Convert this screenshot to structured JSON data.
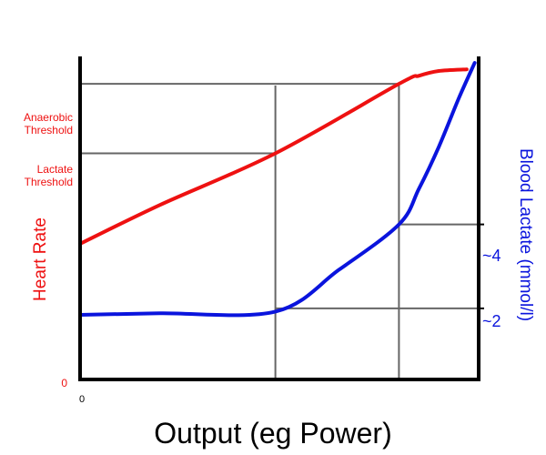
{
  "chart_data": {
    "type": "line",
    "title": "",
    "xlabel": "Output (eg Power)",
    "ylabel_left": "Heart Rate",
    "ylabel_right": "Blood Lactate (mmol/l)",
    "x_origin_label": "0",
    "y_origin_label": "0",
    "left_axis_annotations": [
      {
        "lines": [
          "Anaerobic",
          "Threshold"
        ],
        "level": 0.915
      },
      {
        "lines": [
          "Lactate",
          "Threshold"
        ],
        "level": 0.7
      }
    ],
    "right_axis_ticks": [
      {
        "label": "~4",
        "level": 0.48
      },
      {
        "label": "~2",
        "level": 0.22
      }
    ],
    "vertical_markers": [
      0.49,
      0.8
    ],
    "colors": {
      "heart_rate": "#ee1111",
      "blood_lactate": "#0a14dd",
      "axes": "#000000",
      "guides": "#666666"
    },
    "series": [
      {
        "name": "Heart Rate",
        "color": "#ee1111",
        "points": [
          [
            0.0,
            0.42
          ],
          [
            0.2,
            0.54
          ],
          [
            0.49,
            0.7
          ],
          [
            0.8,
            0.915
          ],
          [
            0.85,
            0.94
          ],
          [
            0.9,
            0.955
          ],
          [
            0.97,
            0.96
          ]
        ]
      },
      {
        "name": "Blood Lactate",
        "color": "#0a14dd",
        "points": [
          [
            0.0,
            0.2
          ],
          [
            0.2,
            0.205
          ],
          [
            0.49,
            0.21
          ],
          [
            0.65,
            0.34
          ],
          [
            0.8,
            0.48
          ],
          [
            0.85,
            0.59
          ],
          [
            0.9,
            0.72
          ],
          [
            0.95,
            0.87
          ],
          [
            0.99,
            0.98
          ]
        ]
      }
    ]
  }
}
